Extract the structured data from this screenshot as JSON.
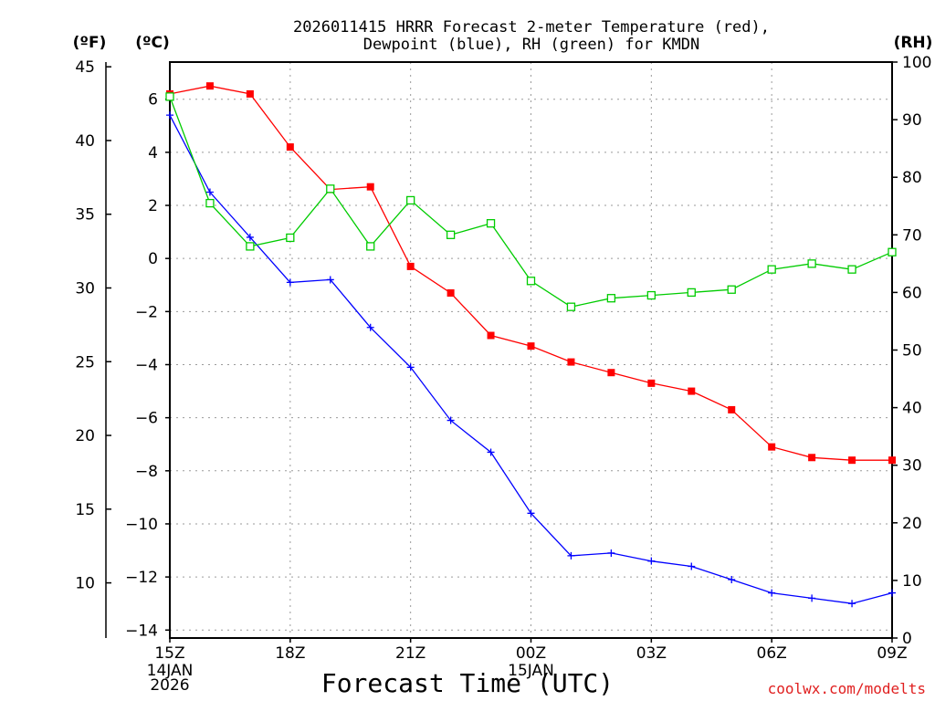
{
  "chart_data": {
    "type": "line",
    "title_line1": "2026011415 HRRR Forecast 2-meter Temperature (red),",
    "title_line2": "Dewpoint (blue), RH (green) for KMDN",
    "xlabel": "Forecast Time (UTC)",
    "credit": "coolwx.com/modelts",
    "unit_labels": {
      "fahrenheit": "(ºF)",
      "celsius": "(ºC)",
      "rh": "(RH)"
    },
    "x": [
      "15Z",
      "16Z",
      "17Z",
      "18Z",
      "19Z",
      "20Z",
      "21Z",
      "22Z",
      "23Z",
      "00Z",
      "01Z",
      "02Z",
      "03Z",
      "04Z",
      "05Z",
      "06Z",
      "07Z",
      "08Z",
      "09Z"
    ],
    "x_ticks": [
      {
        "label": "15Z",
        "index": 0
      },
      {
        "label": "18Z",
        "index": 3
      },
      {
        "label": "21Z",
        "index": 6
      },
      {
        "label": "00Z",
        "index": 9
      },
      {
        "label": "03Z",
        "index": 12
      },
      {
        "label": "06Z",
        "index": 15
      },
      {
        "label": "09Z",
        "index": 18
      }
    ],
    "date_labels": [
      {
        "index": 0,
        "lines": [
          "14JAN",
          "2026"
        ]
      },
      {
        "index": 9,
        "lines": [
          "15JAN"
        ]
      }
    ],
    "celsius_axis": {
      "range": [
        -14.3,
        7.4
      ],
      "ticks": [
        6,
        4,
        2,
        0,
        -2,
        -4,
        -6,
        -8,
        -10,
        -12,
        -14
      ]
    },
    "fahrenheit_axis": {
      "ticks": [
        45,
        40,
        35,
        30,
        25,
        20,
        15,
        10
      ]
    },
    "rh_axis": {
      "range": [
        0,
        100
      ],
      "ticks": [
        100,
        90,
        80,
        70,
        60,
        50,
        40,
        30,
        20,
        10,
        0
      ]
    },
    "series": [
      {
        "name": "Temperature",
        "units": "C",
        "color": "#ff0000",
        "marker": "filled-square",
        "values": [
          6.2,
          6.5,
          6.2,
          4.2,
          2.6,
          2.7,
          -0.3,
          -1.3,
          -2.9,
          -3.3,
          -3.9,
          -4.3,
          -4.7,
          -5.0,
          -5.7,
          -7.1,
          -7.5,
          -7.6,
          -7.6
        ]
      },
      {
        "name": "Dewpoint",
        "units": "C",
        "color": "#0000ff",
        "marker": "plus",
        "values": [
          5.4,
          2.5,
          0.8,
          -0.9,
          -0.8,
          -2.6,
          -4.1,
          -6.1,
          -7.3,
          -9.6,
          -11.2,
          -11.1,
          -11.4,
          -11.6,
          -12.1,
          -12.6,
          -12.8,
          -13.0,
          -12.6
        ]
      },
      {
        "name": "RH",
        "units": "%",
        "color": "#00cc00",
        "marker": "open-square",
        "values": [
          94,
          75.5,
          68,
          69.5,
          78,
          68,
          76,
          70,
          72,
          62,
          57.5,
          59,
          59.5,
          60,
          60.5,
          64,
          65,
          64,
          67
        ]
      }
    ]
  }
}
